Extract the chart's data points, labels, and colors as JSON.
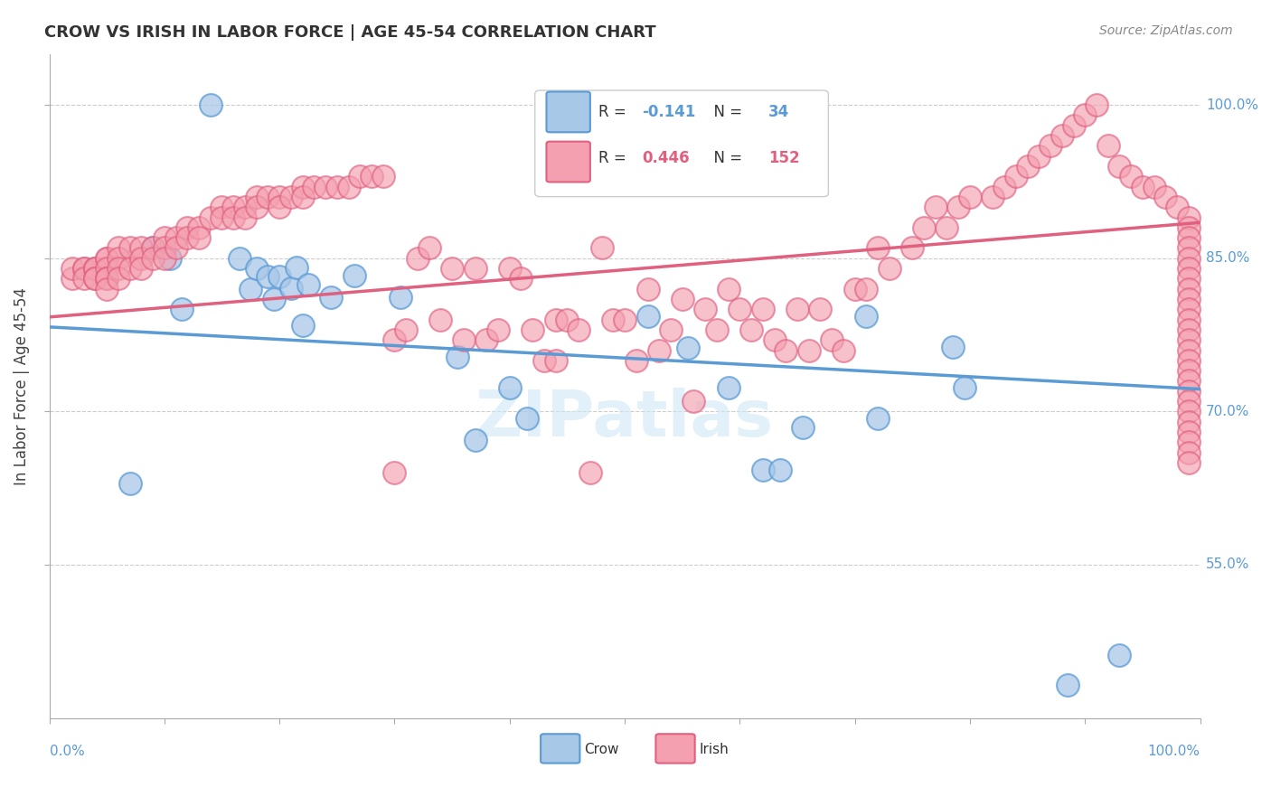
{
  "title": "CROW VS IRISH IN LABOR FORCE | AGE 45-54 CORRELATION CHART",
  "source": "Source: ZipAtlas.com",
  "ylabel_label": "In Labor Force | Age 45-54",
  "legend_crow_R": -0.141,
  "legend_crow_N": 34,
  "legend_irish_R": 0.446,
  "legend_irish_N": 152,
  "crow_color": "#a8c8e8",
  "crow_edge_color": "#5b9bd5",
  "irish_color": "#f4a0b0",
  "irish_edge_color": "#e06080",
  "crow_line_color": "#5b9bd5",
  "irish_line_color": "#e06080",
  "watermark_color": "#d0e8f5",
  "right_label_color": "#5b9bd5",
  "crow_scatter_x": [
    0.07,
    0.09,
    0.105,
    0.115,
    0.14,
    0.165,
    0.175,
    0.18,
    0.19,
    0.195,
    0.2,
    0.21,
    0.215,
    0.22,
    0.225,
    0.245,
    0.265,
    0.305,
    0.355,
    0.37,
    0.4,
    0.415,
    0.52,
    0.555,
    0.59,
    0.62,
    0.635,
    0.655,
    0.71,
    0.72,
    0.785,
    0.795,
    0.885,
    0.93
  ],
  "crow_scatter_y": [
    0.63,
    0.86,
    0.85,
    0.8,
    1.0,
    0.85,
    0.82,
    0.84,
    0.832,
    0.81,
    0.832,
    0.821,
    0.841,
    0.784,
    0.824,
    0.812,
    0.833,
    0.812,
    0.753,
    0.672,
    0.723,
    0.693,
    0.793,
    0.762,
    0.723,
    0.643,
    0.643,
    0.684,
    0.793,
    0.693,
    0.763,
    0.723,
    0.432,
    0.462
  ],
  "irish_scatter_x": [
    0.02,
    0.02,
    0.03,
    0.03,
    0.03,
    0.04,
    0.04,
    0.04,
    0.04,
    0.04,
    0.05,
    0.05,
    0.05,
    0.05,
    0.05,
    0.05,
    0.06,
    0.06,
    0.06,
    0.06,
    0.07,
    0.07,
    0.08,
    0.08,
    0.08,
    0.09,
    0.09,
    0.1,
    0.1,
    0.1,
    0.11,
    0.11,
    0.12,
    0.12,
    0.13,
    0.13,
    0.14,
    0.15,
    0.15,
    0.16,
    0.16,
    0.17,
    0.17,
    0.18,
    0.18,
    0.19,
    0.2,
    0.2,
    0.21,
    0.22,
    0.22,
    0.23,
    0.24,
    0.25,
    0.26,
    0.27,
    0.28,
    0.29,
    0.3,
    0.3,
    0.31,
    0.32,
    0.33,
    0.34,
    0.35,
    0.36,
    0.37,
    0.38,
    0.39,
    0.4,
    0.41,
    0.42,
    0.43,
    0.44,
    0.44,
    0.45,
    0.46,
    0.47,
    0.48,
    0.49,
    0.5,
    0.51,
    0.52,
    0.53,
    0.54,
    0.55,
    0.56,
    0.57,
    0.58,
    0.59,
    0.6,
    0.61,
    0.62,
    0.63,
    0.64,
    0.65,
    0.66,
    0.67,
    0.68,
    0.69,
    0.7,
    0.71,
    0.72,
    0.73,
    0.75,
    0.76,
    0.77,
    0.78,
    0.79,
    0.8,
    0.82,
    0.83,
    0.84,
    0.85,
    0.86,
    0.87,
    0.88,
    0.89,
    0.9,
    0.91,
    0.92,
    0.93,
    0.94,
    0.95,
    0.96,
    0.97,
    0.98,
    0.99,
    0.99,
    0.99,
    0.99,
    0.99,
    0.99,
    0.99,
    0.99,
    0.99,
    0.99,
    0.99,
    0.99,
    0.99,
    0.99,
    0.99,
    0.99,
    0.99,
    0.99,
    0.99,
    0.99,
    0.99,
    0.99,
    0.99,
    0.99,
    0.99
  ],
  "irish_scatter_y": [
    0.83,
    0.84,
    0.84,
    0.84,
    0.83,
    0.84,
    0.84,
    0.84,
    0.83,
    0.83,
    0.85,
    0.85,
    0.84,
    0.83,
    0.83,
    0.82,
    0.86,
    0.85,
    0.84,
    0.83,
    0.86,
    0.84,
    0.86,
    0.85,
    0.84,
    0.86,
    0.85,
    0.87,
    0.86,
    0.85,
    0.87,
    0.86,
    0.88,
    0.87,
    0.88,
    0.87,
    0.89,
    0.9,
    0.89,
    0.9,
    0.89,
    0.9,
    0.89,
    0.91,
    0.9,
    0.91,
    0.91,
    0.9,
    0.91,
    0.92,
    0.91,
    0.92,
    0.92,
    0.92,
    0.92,
    0.93,
    0.93,
    0.93,
    0.77,
    0.64,
    0.78,
    0.85,
    0.86,
    0.79,
    0.84,
    0.77,
    0.84,
    0.77,
    0.78,
    0.84,
    0.83,
    0.78,
    0.75,
    0.75,
    0.79,
    0.79,
    0.78,
    0.64,
    0.86,
    0.79,
    0.79,
    0.75,
    0.82,
    0.76,
    0.78,
    0.81,
    0.71,
    0.8,
    0.78,
    0.82,
    0.8,
    0.78,
    0.8,
    0.77,
    0.76,
    0.8,
    0.76,
    0.8,
    0.77,
    0.76,
    0.82,
    0.82,
    0.86,
    0.84,
    0.86,
    0.88,
    0.9,
    0.88,
    0.9,
    0.91,
    0.91,
    0.92,
    0.93,
    0.94,
    0.95,
    0.96,
    0.97,
    0.98,
    0.99,
    1.0,
    0.96,
    0.94,
    0.93,
    0.92,
    0.92,
    0.91,
    0.9,
    0.89,
    0.88,
    0.87,
    0.86,
    0.85,
    0.84,
    0.83,
    0.82,
    0.81,
    0.8,
    0.79,
    0.78,
    0.77,
    0.76,
    0.75,
    0.74,
    0.73,
    0.72,
    0.71,
    0.7,
    0.69,
    0.68,
    0.67,
    0.66,
    0.65
  ],
  "ylim": [
    0.4,
    1.05
  ],
  "xlim": [
    0.0,
    1.0
  ],
  "ytick_positions": [
    0.55,
    0.7,
    0.85,
    1.0
  ],
  "ytick_labels": [
    "55.0%",
    "70.0%",
    "85.0%",
    "100.0%"
  ]
}
